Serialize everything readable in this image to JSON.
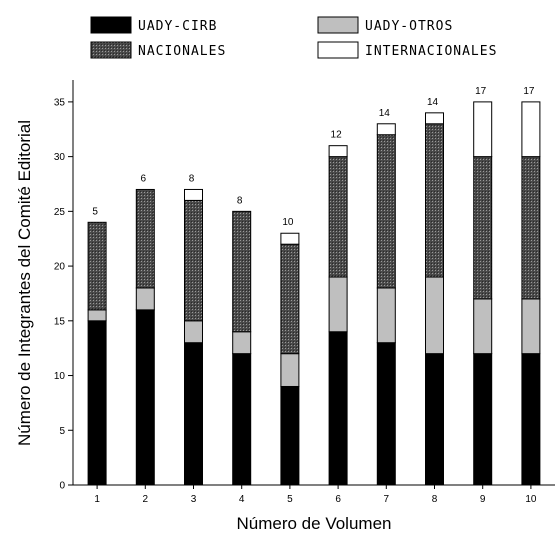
{
  "chart_data": {
    "type": "bar",
    "stacked": true,
    "xlabel": "Número de Volumen",
    "ylabel": "Número de Integrantes del Comité Editorial",
    "ylim": [
      0,
      37
    ],
    "yticks": [
      0,
      5,
      10,
      15,
      20,
      25,
      30,
      35
    ],
    "categories": [
      "1",
      "2",
      "3",
      "4",
      "5",
      "6",
      "7",
      "8",
      "9",
      "10"
    ],
    "series": [
      {
        "name": "UADY-CIRB",
        "values": [
          15,
          16,
          13,
          12,
          9,
          14,
          13,
          12,
          12,
          12
        ],
        "pattern": "solid-black"
      },
      {
        "name": "UADY-OTROS",
        "values": [
          1,
          2,
          2,
          2,
          3,
          5,
          5,
          7,
          5,
          5
        ],
        "pattern": "solid-gray"
      },
      {
        "name": "NACIONALES",
        "values": [
          8,
          9,
          11,
          11,
          10,
          11,
          14,
          14,
          13,
          13
        ],
        "pattern": "dark-hatch"
      },
      {
        "name": "INTERNACIONALES",
        "values": [
          0,
          0,
          1,
          0,
          1,
          1,
          1,
          1,
          5,
          5
        ],
        "pattern": "white"
      }
    ],
    "data_labels": [
      "5",
      "6",
      "8",
      "8",
      "10",
      "12",
      "14",
      "14",
      "17",
      "17"
    ],
    "grid": false,
    "legend_position": "top"
  }
}
